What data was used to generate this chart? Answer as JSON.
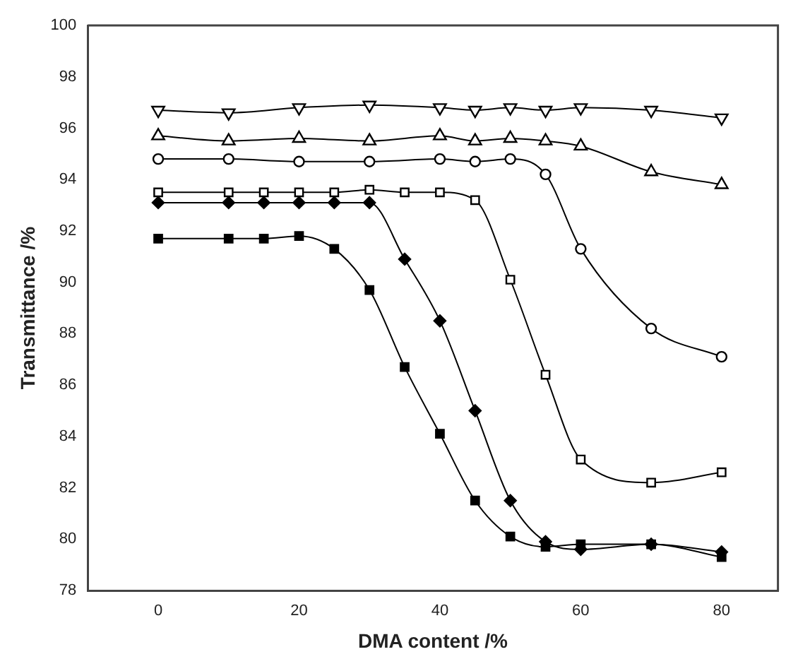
{
  "chart_data": {
    "type": "line",
    "xlabel": "DMA content /%",
    "ylabel": "Transmittance /%",
    "xlim": [
      -10,
      88
    ],
    "xticks": [
      0,
      20,
      40,
      60,
      80
    ],
    "ylim": [
      78,
      100
    ],
    "yticks": [
      78,
      80,
      82,
      84,
      86,
      88,
      90,
      92,
      94,
      96,
      98,
      100
    ],
    "grid": false,
    "legend": false,
    "series": [
      {
        "color": "#000000",
        "marker": "triangle_down_open",
        "x": [
          0,
          10,
          20,
          30,
          40,
          45,
          50,
          55,
          60,
          70,
          80
        ],
        "values": [
          96.7,
          96.6,
          96.8,
          96.9,
          96.8,
          96.7,
          96.8,
          96.7,
          96.8,
          96.7,
          96.4
        ]
      },
      {
        "color": "#000000",
        "marker": "triangle_open",
        "x": [
          0,
          10,
          20,
          30,
          40,
          45,
          50,
          55,
          60,
          70,
          80
        ],
        "values": [
          95.7,
          95.5,
          95.6,
          95.5,
          95.7,
          95.5,
          95.6,
          95.5,
          95.3,
          94.3,
          93.8
        ]
      },
      {
        "color": "#000000",
        "marker": "circle_open",
        "x": [
          0,
          10,
          20,
          30,
          40,
          45,
          50,
          55,
          60,
          70,
          80
        ],
        "values": [
          94.8,
          94.8,
          94.7,
          94.7,
          94.8,
          94.7,
          94.8,
          94.2,
          91.3,
          88.2,
          87.1
        ]
      },
      {
        "color": "#000000",
        "marker": "square_open",
        "x": [
          0,
          10,
          15,
          20,
          25,
          30,
          35,
          40,
          45,
          50,
          55,
          60,
          70,
          80
        ],
        "values": [
          93.5,
          93.5,
          93.5,
          93.5,
          93.5,
          93.6,
          93.5,
          93.5,
          93.2,
          90.1,
          86.4,
          83.1,
          82.2,
          82.6
        ]
      },
      {
        "color": "#000000",
        "marker": "diamond",
        "x": [
          0,
          10,
          15,
          20,
          25,
          30,
          35,
          40,
          45,
          50,
          55,
          60,
          70,
          80
        ],
        "values": [
          93.1,
          93.1,
          93.1,
          93.1,
          93.1,
          93.1,
          90.9,
          88.5,
          85.0,
          81.5,
          79.9,
          79.6,
          79.8,
          79.5
        ]
      },
      {
        "color": "#000000",
        "marker": "square",
        "x": [
          0,
          10,
          15,
          20,
          25,
          30,
          35,
          40,
          45,
          50,
          55,
          60,
          70,
          80
        ],
        "values": [
          91.7,
          91.7,
          91.7,
          91.8,
          91.3,
          89.7,
          86.7,
          84.1,
          81.5,
          80.1,
          79.7,
          79.8,
          79.8,
          79.3
        ]
      }
    ]
  }
}
